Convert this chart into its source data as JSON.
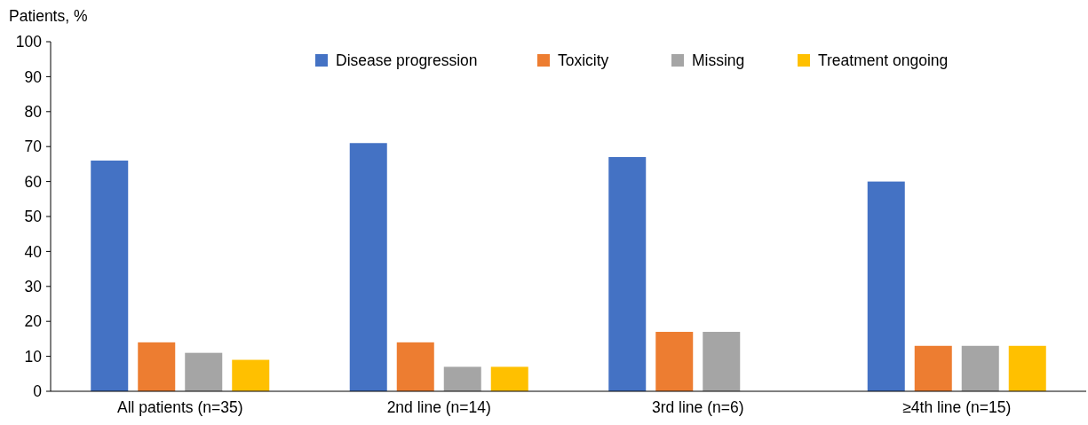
{
  "chart_data": {
    "type": "bar",
    "ylabel": "Patients, %",
    "categories": [
      "All patients (n=35)",
      "2nd line (n=14)",
      "3rd line (n=6)",
      "≥4th line (n=15)"
    ],
    "series": [
      {
        "name": "Disease progression",
        "color": "#4472c4",
        "values": [
          66,
          71,
          67,
          60
        ]
      },
      {
        "name": "Toxicity",
        "color": "#ed7d31",
        "values": [
          14,
          14,
          17,
          13
        ]
      },
      {
        "name": "Missing",
        "color": "#a5a5a5",
        "values": [
          11,
          7,
          17,
          13
        ]
      },
      {
        "name": "Treatment ongoing",
        "color": "#ffc000",
        "values": [
          9,
          7,
          0,
          13
        ]
      }
    ],
    "ylim": [
      0,
      100
    ],
    "yticks": [
      0,
      10,
      20,
      30,
      40,
      50,
      60,
      70,
      80,
      90,
      100
    ],
    "grid": false,
    "legend": "top right"
  }
}
